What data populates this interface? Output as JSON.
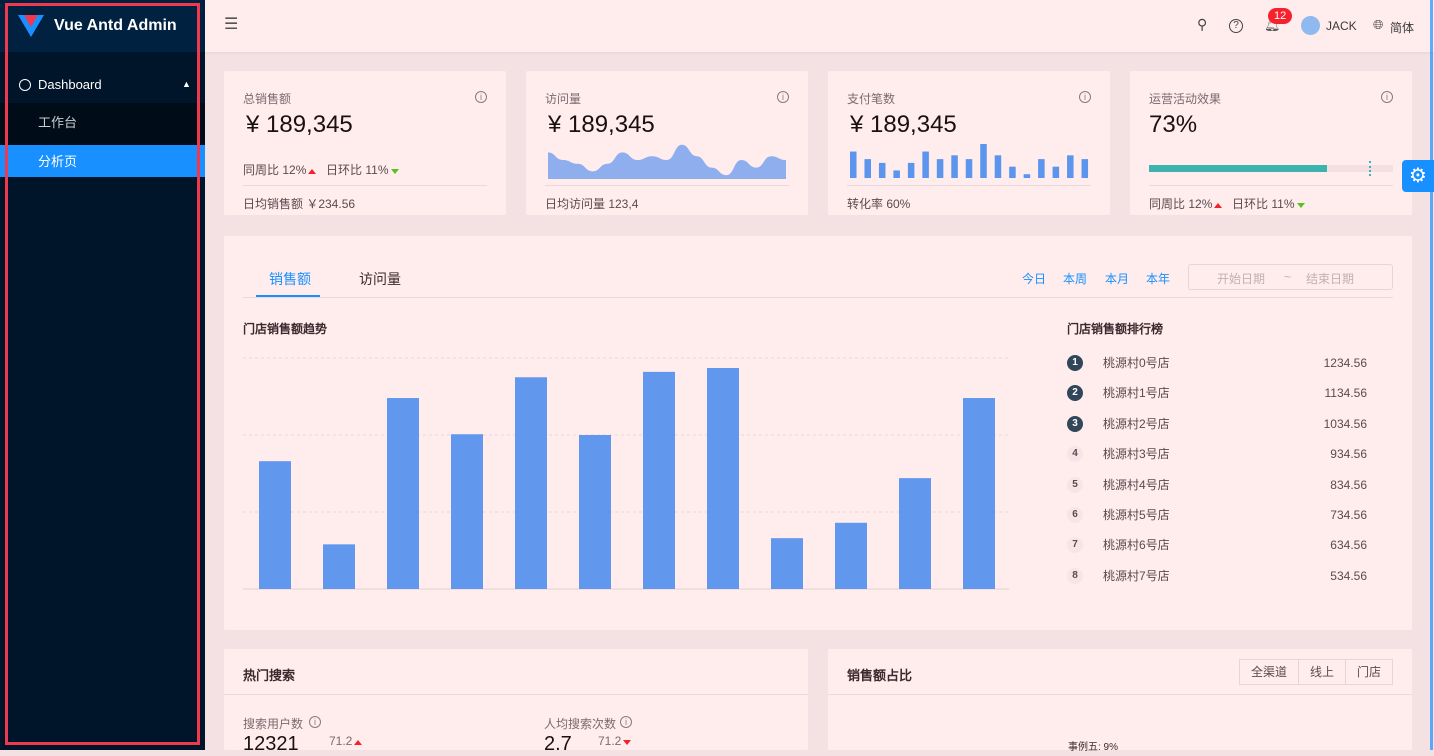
{
  "app": {
    "title": "Vue Antd Admin"
  },
  "sidebar": {
    "group": "Dashboard",
    "items": [
      {
        "label": "工作台",
        "active": false
      },
      {
        "label": "分析页",
        "active": true
      }
    ]
  },
  "header": {
    "notifications": "12",
    "user": "JACK",
    "language": "简体"
  },
  "stats": [
    {
      "title": "总销售额",
      "value": "¥ 189,345",
      "week_label": "同周比",
      "week": "12%",
      "day_label": "日环比",
      "day": "11%",
      "footer": "日均销售额 ￥234.56"
    },
    {
      "title": "访问量",
      "value": "¥ 189,345",
      "footer": "日均访问量 123,4"
    },
    {
      "title": "支付笔数",
      "value": "¥ 189,345",
      "footer": "转化率 60%"
    },
    {
      "title": "运营活动效果",
      "value": "73%",
      "progress": 73,
      "target": 90,
      "week_label": "同周比",
      "week": "12%",
      "day_label": "日环比",
      "day": "11%"
    }
  ],
  "mini_series": [
    7,
    5,
    4,
    2,
    4,
    7,
    5,
    6,
    5,
    9,
    6,
    3,
    1,
    5,
    3,
    6,
    5
  ],
  "sales": {
    "tabs": [
      "销售额",
      "访问量"
    ],
    "active_tab": 0,
    "ranges": [
      "今日",
      "本周",
      "本月",
      "本年"
    ],
    "date_start_placeholder": "开始日期",
    "date_sep": "~",
    "date_end_placeholder": "结束日期",
    "chart_title": "门店销售额趋势",
    "rank_title": "门店销售额排行榜",
    "rank": [
      {
        "n": "1",
        "name": "桃源村0号店",
        "v": "1234.56"
      },
      {
        "n": "2",
        "name": "桃源村1号店",
        "v": "1134.56"
      },
      {
        "n": "3",
        "name": "桃源村2号店",
        "v": "1034.56"
      },
      {
        "n": "4",
        "name": "桃源村3号店",
        "v": "934.56"
      },
      {
        "n": "5",
        "name": "桃源村4号店",
        "v": "834.56"
      },
      {
        "n": "6",
        "name": "桃源村5号店",
        "v": "734.56"
      },
      {
        "n": "7",
        "name": "桃源村6号店",
        "v": "634.56"
      },
      {
        "n": "8",
        "name": "桃源村7号店",
        "v": "534.56"
      }
    ]
  },
  "chart_data": {
    "type": "bar",
    "values": [
      166,
      58,
      248,
      201,
      275,
      200,
      282,
      287,
      66,
      86,
      144,
      248
    ],
    "ylim": [
      0,
      300
    ],
    "grid": true,
    "color": "#6197ed"
  },
  "hot_search": {
    "title": "热门搜索",
    "users_label": "搜索用户数",
    "users": "12321",
    "users_delta": "71.2",
    "per_label": "人均搜索次数",
    "per": "2.7",
    "per_delta": "71.2"
  },
  "share": {
    "title": "销售额占比",
    "options": [
      "全渠道",
      "线上",
      "门店"
    ],
    "label": "事例五: 9%"
  },
  "colors": {
    "sidebar": "#001529",
    "primary": "#1890ff",
    "bar": "#6197ed",
    "progress": "#3cb3af"
  }
}
